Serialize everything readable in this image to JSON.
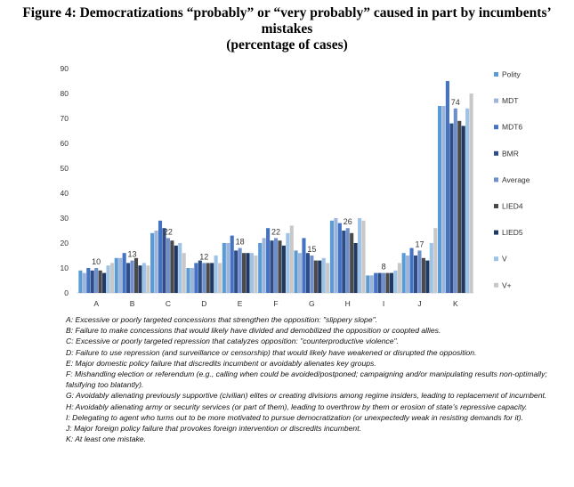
{
  "title_line1": "Figure 4: Democratizations “probably” or “very probably” caused in part by incumbents’ mistakes",
  "title_line2": "(percentage of cases)",
  "chart_data": {
    "type": "bar",
    "categories": [
      "A",
      "B",
      "C",
      "D",
      "E",
      "F",
      "G",
      "H",
      "I",
      "J",
      "K"
    ],
    "ylim": [
      0,
      90
    ],
    "yticks": [
      0,
      10,
      20,
      30,
      40,
      50,
      60,
      70,
      80,
      90
    ],
    "grid": false,
    "legend_position": "right",
    "series": [
      {
        "name": "Polity",
        "color": "#5b9bd5",
        "values": [
          9,
          14,
          24,
          10,
          20,
          20,
          17,
          29,
          7,
          16,
          75
        ]
      },
      {
        "name": "MDT",
        "color": "#9cb5d9",
        "values": [
          8,
          14,
          25,
          10,
          20,
          22,
          16,
          30,
          7,
          15,
          75
        ]
      },
      {
        "name": "MDT6",
        "color": "#4472c4",
        "values": [
          10,
          16,
          29,
          12,
          23,
          26,
          22,
          28,
          8,
          18,
          85
        ]
      },
      {
        "name": "BMR",
        "color": "#2e4d86",
        "values": [
          9,
          12,
          26,
          13,
          17,
          21,
          16,
          25,
          8,
          15,
          68
        ]
      },
      {
        "name": "Average",
        "color": "#6f8fcc",
        "values": [
          10,
          13,
          22,
          12,
          18,
          22,
          15,
          26,
          8,
          17,
          74
        ]
      },
      {
        "name": "LIED4",
        "color": "#4a4a4a",
        "values": [
          9,
          14,
          21,
          12,
          16,
          21,
          13,
          24,
          8,
          14,
          69
        ]
      },
      {
        "name": "LIED5",
        "color": "#1f3864",
        "values": [
          8,
          11,
          19,
          12,
          16,
          19,
          13,
          20,
          8,
          13,
          67
        ]
      },
      {
        "name": "V",
        "color": "#9dc3e6",
        "values": [
          11,
          12,
          20,
          15,
          16,
          24,
          14,
          30,
          9,
          20,
          74
        ]
      },
      {
        "name": "V+",
        "color": "#c8c8c8",
        "values": [
          12,
          11,
          16,
          12,
          15,
          27,
          12,
          29,
          12,
          26,
          80
        ]
      }
    ],
    "data_labels": [
      {
        "category": "A",
        "text": "10",
        "value": 10
      },
      {
        "category": "B",
        "text": "13",
        "value": 13
      },
      {
        "category": "C",
        "text": "22",
        "value": 22
      },
      {
        "category": "D",
        "text": "12",
        "value": 12
      },
      {
        "category": "E",
        "text": "18",
        "value": 18
      },
      {
        "category": "F",
        "text": "22",
        "value": 22
      },
      {
        "category": "G",
        "text": "15",
        "value": 15
      },
      {
        "category": "H",
        "text": "26",
        "value": 26
      },
      {
        "category": "I",
        "text": "8",
        "value": 8
      },
      {
        "category": "J",
        "text": "17",
        "value": 17
      },
      {
        "category": "K",
        "text": "74",
        "value": 74
      }
    ]
  },
  "notes": [
    "A: Excessive or poorly targeted concessions that strengthen the opposition: \"slippery slope\".",
    "B: Failure to make concessions that would likely have divided and demobilized the opposition or coopted allies.",
    "C: Excessive or poorly targeted repression that catalyzes opposition: \"counterproductive violence\".",
    "D: Failure to use repression (and surveillance or censorship) that would likely have weakened or disrupted the opposition.",
    "E: Major domestic policy failure that discredits incumbent or avoidably alienates key groups.",
    "F: Mishandling election or referendum (e.g., calling when could be avoided/postponed; campaigning and/or manipulating results non-optimally; falsifying too blatantly).",
    "G: Avoidably alienating previously supportive (civilian) elites or creating divisions among regime insiders, leading to replacement of incumbent.",
    "H: Avoidably alienating army or security services (or part of them), leading to overthrow by them or erosion of state’s repressive capacity.",
    "I: Delegating to agent who turns out to be more motivated to pursue democratization (or unexpectedly weak in resisting demands for it).",
    "J: Major foreign policy failure that provokes foreign intervention or discredits incumbent.",
    "K: At least one mistake."
  ]
}
